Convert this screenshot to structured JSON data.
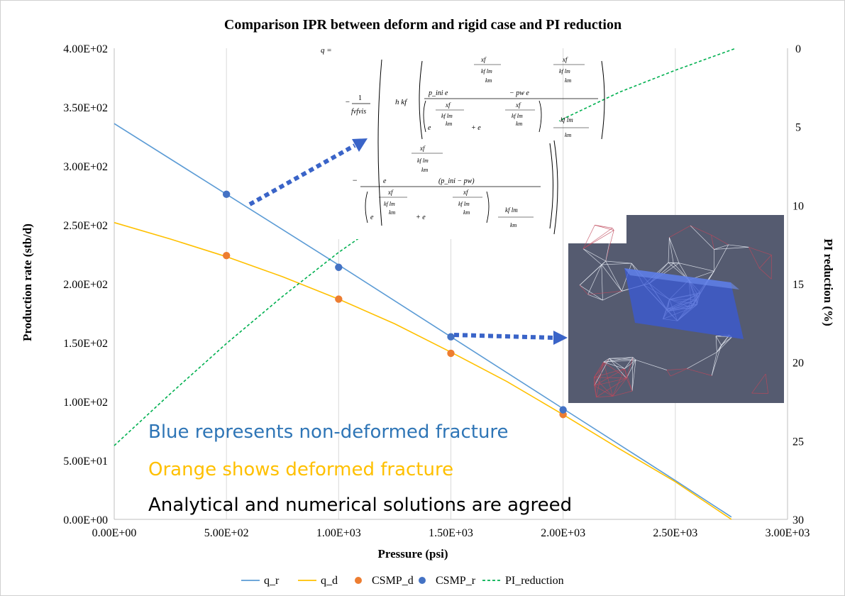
{
  "chart_data": {
    "type": "line",
    "title": "Comparison IPR between deform and rigid case and PI reduction",
    "xlabel": "Pressure (psi)",
    "ylabel": "Production rate (stb/d)",
    "y2label": "PI reduction (%)",
    "xlim": [
      0,
      3000
    ],
    "ylim": [
      0,
      400
    ],
    "y2lim": [
      0,
      30
    ],
    "y2_inverted": true,
    "grid": "vertical",
    "legend": "bottom",
    "x_ticks": [
      "0.00E+00",
      "5.00E+02",
      "1.00E+03",
      "1.50E+03",
      "2.00E+03",
      "2.50E+03",
      "3.00E+03"
    ],
    "y_ticks": [
      "0.00E+00",
      "5.00E+01",
      "1.00E+02",
      "1.50E+02",
      "2.00E+02",
      "2.50E+02",
      "3.00E+02",
      "3.50E+02",
      "4.00E+02"
    ],
    "y2_ticks": [
      "0",
      "5",
      "10",
      "15",
      "20",
      "25",
      "30"
    ],
    "series": [
      {
        "name": "q_r",
        "kind": "line",
        "axis": "left",
        "color": "#5b9bd5",
        "x": [
          0,
          500,
          1000,
          1500,
          2000,
          2500,
          2750
        ],
        "y": [
          336,
          276,
          216,
          155,
          94,
          33,
          2
        ]
      },
      {
        "name": "q_d",
        "kind": "line",
        "axis": "left",
        "color": "#ffc000",
        "x": [
          0,
          250,
          500,
          750,
          1000,
          1250,
          1500,
          1750,
          2000,
          2250,
          2500,
          2750
        ],
        "y": [
          252,
          238,
          223,
          206,
          187,
          166,
          142,
          117,
          89,
          60,
          32,
          0
        ]
      },
      {
        "name": "CSMP_d",
        "kind": "scatter",
        "axis": "left",
        "color": "#ed7d31",
        "x": [
          500,
          1000,
          1500,
          2000
        ],
        "y": [
          224,
          187,
          141,
          89
        ]
      },
      {
        "name": "CSMP_r",
        "kind": "scatter",
        "axis": "left",
        "color": "#4472c4",
        "x": [
          500,
          1000,
          1500,
          2000
        ],
        "y": [
          276,
          214,
          155,
          93
        ]
      },
      {
        "name": "PI_reduction",
        "kind": "line",
        "axis": "right",
        "dashed": true,
        "color": "#00b050",
        "x": [
          0,
          250,
          500,
          750,
          1000,
          1250,
          1500,
          1750,
          2000,
          2250,
          2500,
          2770
        ],
        "y": [
          25.3,
          22.0,
          18.8,
          15.8,
          13.0,
          10.5,
          8.3,
          6.3,
          4.5,
          2.8,
          1.4,
          0
        ]
      }
    ],
    "annotations": [
      {
        "text": "Blue represents non-deformed fracture",
        "color": "#2e75b6"
      },
      {
        "text": "Orange shows deformed fracture",
        "color": "#ffc000"
      },
      {
        "text": "Analytical and numerical solutions are agreed",
        "color": "#000000"
      }
    ]
  },
  "formula": {
    "q_eq": "q =",
    "one": "1",
    "fvfvis": "fvfvis",
    "h_kf": "h kf",
    "p_ini": "p_ini e",
    "minus_pw": "− pw e",
    "xf": "xf",
    "kflm": "kf lm",
    "km": "km",
    "e": "e",
    "plus_e": "+ e",
    "paren": "(p_ini − pw)",
    "minus": "−"
  },
  "colors": {
    "arrow": "#3a64c8",
    "mesh_bg": "#555b70",
    "mesh_band": "#3a5ad8"
  }
}
